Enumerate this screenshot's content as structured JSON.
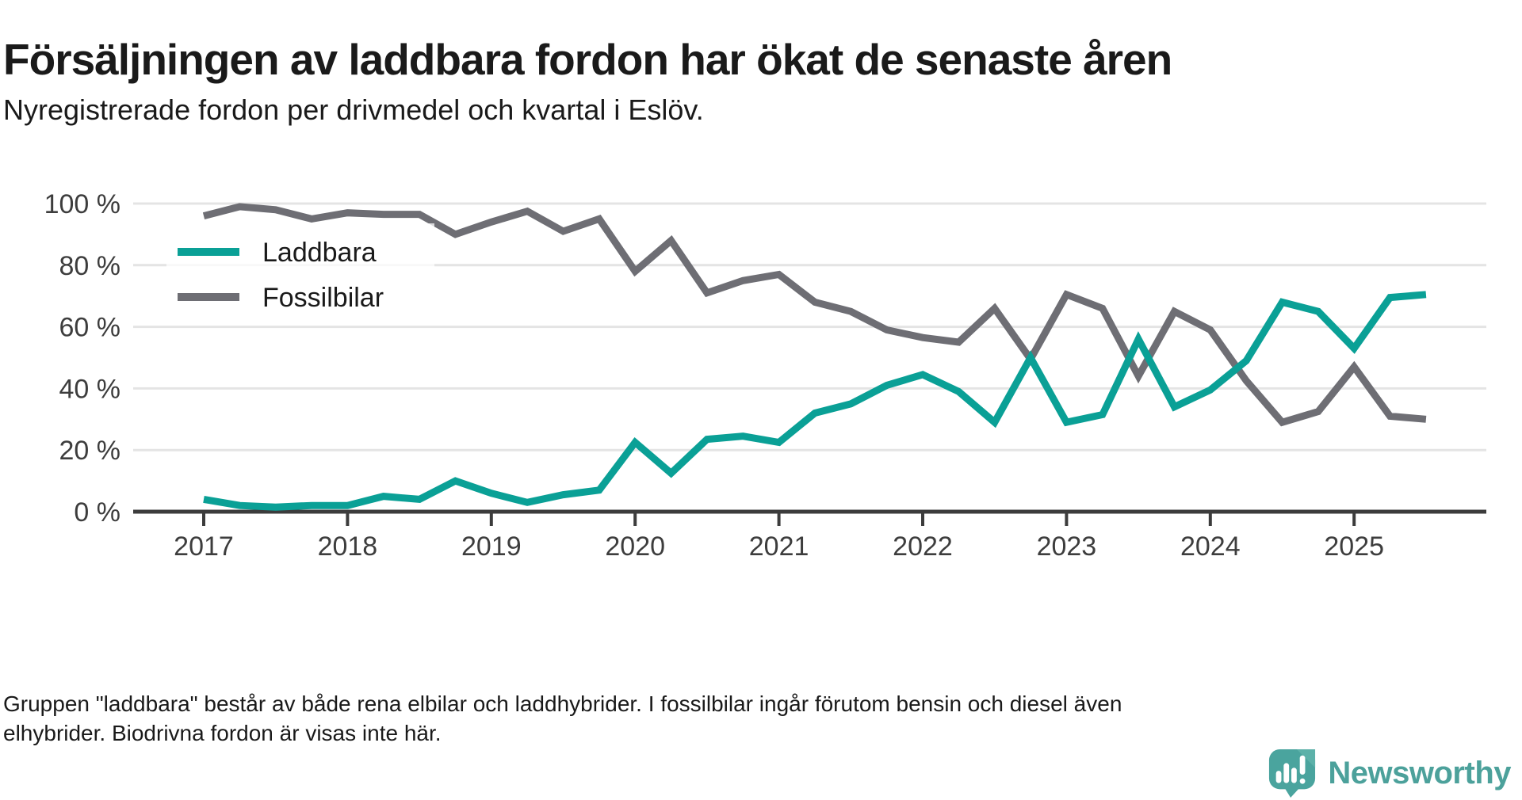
{
  "header": {
    "title": "Försäljningen av laddbara fordon har ökat de senaste åren",
    "subtitle": "Nyregistrerade fordon per drivmedel och kvartal i Eslöv."
  },
  "chart_data": {
    "type": "line",
    "title": "Nyregistrerade fordon per drivmedel och kvartal i Eslöv",
    "categories": [
      "2017 Q1",
      "2017 Q2",
      "2017 Q3",
      "2017 Q4",
      "2018 Q1",
      "2018 Q2",
      "2018 Q3",
      "2018 Q4",
      "2019 Q1",
      "2019 Q2",
      "2019 Q3",
      "2019 Q4",
      "2020 Q1",
      "2020 Q2",
      "2020 Q3",
      "2020 Q4",
      "2021 Q1",
      "2021 Q2",
      "2021 Q3",
      "2021 Q4",
      "2022 Q1",
      "2022 Q2",
      "2022 Q3",
      "2022 Q4",
      "2023 Q1",
      "2023 Q2",
      "2023 Q3",
      "2023 Q4",
      "2024 Q1",
      "2024 Q2",
      "2024 Q3",
      "2024 Q4",
      "2025 Q1",
      "2025 Q2",
      "2025 Q3"
    ],
    "series": [
      {
        "name": "Laddbara",
        "color": "#0aa096",
        "values": [
          4,
          2,
          1.5,
          2,
          2,
          5,
          4,
          10,
          6,
          3,
          5.5,
          7,
          22.5,
          12.5,
          23.5,
          24.5,
          22.5,
          32,
          35,
          41,
          44.5,
          39,
          29,
          50,
          29,
          31.5,
          56,
          34,
          39.5,
          49,
          68,
          65,
          53,
          69.5,
          70.5
        ]
      },
      {
        "name": "Fossilbilar",
        "color": "#6e6e74",
        "values": [
          96,
          99,
          98,
          95,
          97,
          96.5,
          96.5,
          90,
          94,
          97.5,
          91,
          95,
          78,
          88,
          71,
          75,
          77,
          68,
          65,
          59,
          56.5,
          55,
          66,
          49.5,
          70.5,
          66,
          44,
          65,
          59,
          42.5,
          29,
          32.5,
          47,
          31,
          30
        ]
      }
    ],
    "ylim": [
      0,
      100
    ],
    "ytick_values": [
      0,
      20,
      40,
      60,
      80,
      100
    ],
    "ytick_labels": [
      "0 %",
      "20 %",
      "40 %",
      "60 %",
      "80 %",
      "100 %"
    ],
    "xtick_labels": [
      "2017",
      "2018",
      "2019",
      "2020",
      "2021",
      "2022",
      "2023",
      "2024",
      "2025"
    ],
    "grid": true,
    "legend_position": "inside-top-left"
  },
  "footer": {
    "note": "Gruppen \"laddbara\" består av både rena elbilar och laddhybrider. I fossilbilar ingår förutom bensin och diesel även elhybrider. Biodrivna fordon är visas inte här."
  },
  "branding": {
    "logo_text": "Newsworthy",
    "logo_color": "#4ca19b",
    "icon_color": "#4aa49e"
  }
}
